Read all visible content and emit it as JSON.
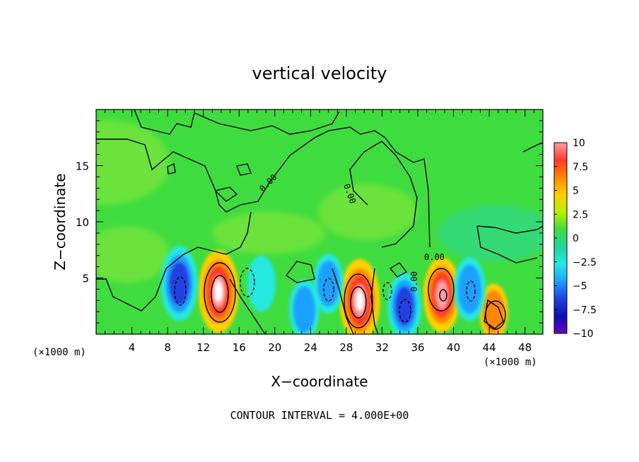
{
  "chart_data": {
    "type": "heatmap",
    "title": "vertical velocity",
    "xlabel": "X−coordinate",
    "ylabel": "Z−coordinate",
    "x_unit_label": "(×1000 m)",
    "x_unit_label_right": "(×1000 m)",
    "footer": "CONTOUR INTERVAL = 4.000E+00",
    "xlim": [
      0,
      50
    ],
    "ylim": [
      0,
      20
    ],
    "x_ticks": [
      4,
      8,
      12,
      16,
      20,
      24,
      28,
      32,
      36,
      40,
      44,
      48
    ],
    "y_ticks": [
      5,
      10,
      15
    ],
    "colorbar": {
      "labels": [
        "10",
        "7.5",
        "5",
        "2.5",
        "0",
        "−2.5",
        "−5",
        "−7.5",
        "−10"
      ],
      "levels": [
        10,
        7.5,
        5,
        2.5,
        0,
        -2.5,
        -5,
        -7.5,
        -10
      ],
      "colors": [
        "#ff9f9f",
        "#ff3a2a",
        "#ff8800",
        "#ffd000",
        "#b8f000",
        "#3fdc3f",
        "#22d4a0",
        "#27e8e0",
        "#1ea0ff",
        "#2040e0",
        "#1010b0",
        "#6a00c0"
      ]
    },
    "contour_labels": [
      "0.00",
      "0.00",
      "0.00",
      "0.00"
    ],
    "contour_interval": 4.0,
    "field_features": [
      {
        "kind": "updraft",
        "x": 13.7,
        "z": 3.8,
        "peak": 10
      },
      {
        "kind": "updraft",
        "x": 29.5,
        "z": 3.0,
        "peak": 10
      },
      {
        "kind": "updraft",
        "x": 38.7,
        "z": 3.5,
        "peak": 8
      },
      {
        "kind": "updraft",
        "x": 44.5,
        "z": 2.0,
        "peak": 3
      },
      {
        "kind": "downdraft",
        "x": 9.3,
        "z": 4.5,
        "peak": -8
      },
      {
        "kind": "downdraft",
        "x": 34.5,
        "z": 2.5,
        "peak": -6
      },
      {
        "kind": "downdraft",
        "x": 41.8,
        "z": 4.0,
        "peak": -5
      },
      {
        "kind": "downdraft",
        "x": 23.3,
        "z": 2.2,
        "peak": -4
      },
      {
        "kind": "downdraft",
        "x": 26.0,
        "z": 4.5,
        "peak": -4
      },
      {
        "kind": "downdraft",
        "x": 18.5,
        "z": 4.5,
        "peak": -3
      }
    ]
  }
}
